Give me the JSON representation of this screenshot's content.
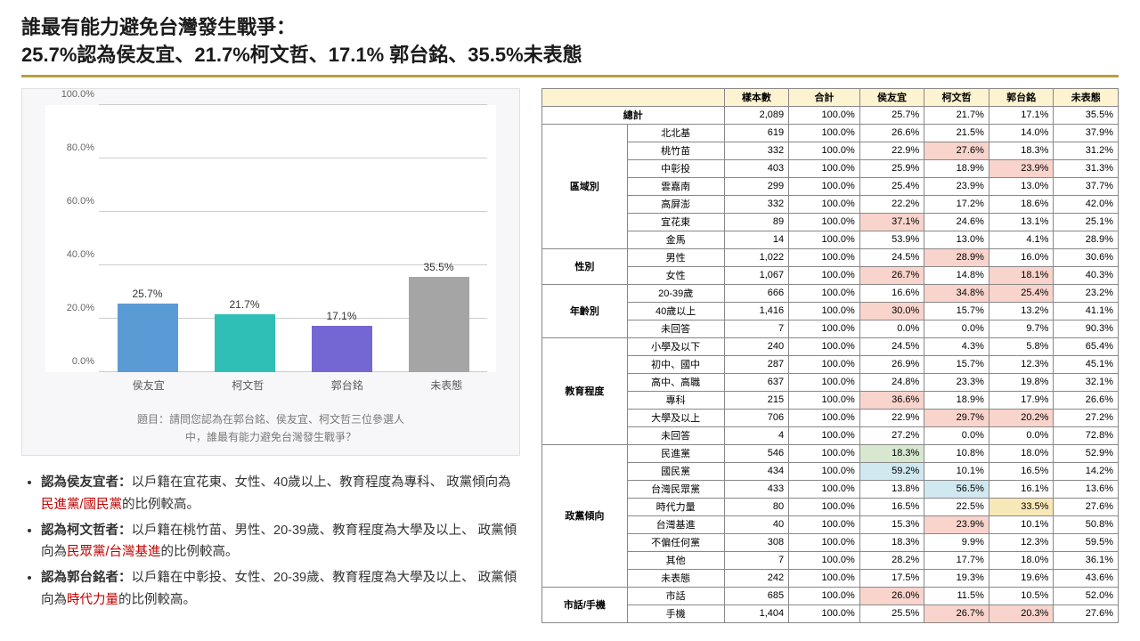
{
  "title_line1": "誰最有能力避免台灣發生戰爭：",
  "title_line2": "25.7%認為侯友宜、21.7%柯文哲、17.1% 郭台銘、35.5%未表態",
  "chart": {
    "type": "bar",
    "categories": [
      "侯友宜",
      "柯文哲",
      "郭台銘",
      "未表態"
    ],
    "values": [
      25.7,
      21.7,
      17.1,
      35.5
    ],
    "value_labels": [
      "25.7%",
      "21.7%",
      "17.1%",
      "35.5%"
    ],
    "bar_colors": [
      "#5b9bd5",
      "#2fbfb7",
      "#7467d3",
      "#a5a5a5"
    ],
    "ylim": [
      0,
      100
    ],
    "ytick_step": 20,
    "y_labels": [
      "0.0%",
      "20.0%",
      "40.0%",
      "60.0%",
      "80.0%",
      "100.0%"
    ],
    "grid_color": "#cccccc",
    "background": "#f7f7f9",
    "question_line1": "題目：請問您認為在郭台銘、侯友宜、柯文哲三位參選人",
    "question_line2": "中，誰最有能力避免台灣發生戰爭？"
  },
  "notes": {
    "n1_label": "認為侯友宜者：",
    "n1_text_a": "以戶籍在宜花東、女性、40歲以上、教育程度為專科、 政黨傾向為",
    "n1_hl": "民進黨/國民黨",
    "n1_text_b": "的比例較高。",
    "n2_label": "認為柯文哲者：",
    "n2_text_a": "以戶籍在桃竹苗、男性、20-39歲、教育程度為大學及以上、 政黨傾向為",
    "n2_hl": "民眾黨/台灣基進",
    "n2_text_b": "的比例較高。",
    "n3_label": "認為郭台銘者：",
    "n3_text_a": "以戶籍在中彰投、女性、20-39歲、教育程度為大學及以上、 政黨傾向為",
    "n3_hl": "時代力量",
    "n3_text_b": "的比例較高。"
  },
  "table": {
    "headers": [
      "樣本數",
      "合計",
      "侯友宜",
      "柯文哲",
      "郭台銘",
      "未表態"
    ],
    "total_label": "總計",
    "total": [
      "2,089",
      "100.0%",
      "25.7%",
      "21.7%",
      "17.1%",
      "35.5%"
    ],
    "groups": [
      {
        "name": "區域別",
        "rows": [
          {
            "label": "北北基",
            "cells": [
              "619",
              "100.0%",
              "26.6%",
              "21.5%",
              "14.0%",
              "37.9%"
            ],
            "hl": {}
          },
          {
            "label": "桃竹苗",
            "cells": [
              "332",
              "100.0%",
              "22.9%",
              "27.6%",
              "18.3%",
              "31.2%"
            ],
            "hl": {
              "3": "hl-pink"
            }
          },
          {
            "label": "中彰投",
            "cells": [
              "403",
              "100.0%",
              "25.9%",
              "18.9%",
              "23.9%",
              "31.3%"
            ],
            "hl": {
              "4": "hl-pink"
            }
          },
          {
            "label": "雲嘉南",
            "cells": [
              "299",
              "100.0%",
              "25.4%",
              "23.9%",
              "13.0%",
              "37.7%"
            ],
            "hl": {}
          },
          {
            "label": "高屏澎",
            "cells": [
              "332",
              "100.0%",
              "22.2%",
              "17.2%",
              "18.6%",
              "42.0%"
            ],
            "hl": {}
          },
          {
            "label": "宜花東",
            "cells": [
              "89",
              "100.0%",
              "37.1%",
              "24.6%",
              "13.1%",
              "25.1%"
            ],
            "hl": {
              "2": "hl-pink"
            }
          },
          {
            "label": "金馬",
            "cells": [
              "14",
              "100.0%",
              "53.9%",
              "13.0%",
              "4.1%",
              "28.9%"
            ],
            "hl": {}
          }
        ]
      },
      {
        "name": "性別",
        "rows": [
          {
            "label": "男性",
            "cells": [
              "1,022",
              "100.0%",
              "24.5%",
              "28.9%",
              "16.0%",
              "30.6%"
            ],
            "hl": {
              "3": "hl-pink"
            }
          },
          {
            "label": "女性",
            "cells": [
              "1,067",
              "100.0%",
              "26.7%",
              "14.8%",
              "18.1%",
              "40.3%"
            ],
            "hl": {
              "2": "hl-pink",
              "4": "hl-pink"
            }
          }
        ]
      },
      {
        "name": "年齡別",
        "rows": [
          {
            "label": "20-39歲",
            "cells": [
              "666",
              "100.0%",
              "16.6%",
              "34.8%",
              "25.4%",
              "23.2%"
            ],
            "hl": {
              "3": "hl-pink",
              "4": "hl-pink"
            }
          },
          {
            "label": "40歲以上",
            "cells": [
              "1,416",
              "100.0%",
              "30.0%",
              "15.7%",
              "13.2%",
              "41.1%"
            ],
            "hl": {
              "2": "hl-pink"
            }
          },
          {
            "label": "未回答",
            "cells": [
              "7",
              "100.0%",
              "0.0%",
              "0.0%",
              "9.7%",
              "90.3%"
            ],
            "hl": {}
          }
        ]
      },
      {
        "name": "教育程度",
        "rows": [
          {
            "label": "小學及以下",
            "cells": [
              "240",
              "100.0%",
              "24.5%",
              "4.3%",
              "5.8%",
              "65.4%"
            ],
            "hl": {}
          },
          {
            "label": "初中、國中",
            "cells": [
              "287",
              "100.0%",
              "26.9%",
              "15.7%",
              "12.3%",
              "45.1%"
            ],
            "hl": {}
          },
          {
            "label": "高中、高職",
            "cells": [
              "637",
              "100.0%",
              "24.8%",
              "23.3%",
              "19.8%",
              "32.1%"
            ],
            "hl": {}
          },
          {
            "label": "專科",
            "cells": [
              "215",
              "100.0%",
              "36.6%",
              "18.9%",
              "17.9%",
              "26.6%"
            ],
            "hl": {
              "2": "hl-pink"
            }
          },
          {
            "label": "大學及以上",
            "cells": [
              "706",
              "100.0%",
              "22.9%",
              "29.7%",
              "20.2%",
              "27.2%"
            ],
            "hl": {
              "3": "hl-pink",
              "4": "hl-pink"
            }
          },
          {
            "label": "未回答",
            "cells": [
              "4",
              "100.0%",
              "27.2%",
              "0.0%",
              "0.0%",
              "72.8%"
            ],
            "hl": {}
          }
        ]
      },
      {
        "name": "政黨傾向",
        "rows": [
          {
            "label": "民進黨",
            "cells": [
              "546",
              "100.0%",
              "18.3%",
              "10.8%",
              "18.0%",
              "52.9%"
            ],
            "hl": {
              "2": "hl-green"
            }
          },
          {
            "label": "國民黨",
            "cells": [
              "434",
              "100.0%",
              "59.2%",
              "10.1%",
              "16.5%",
              "14.2%"
            ],
            "hl": {
              "2": "hl-blue"
            }
          },
          {
            "label": "台灣民眾黨",
            "cells": [
              "433",
              "100.0%",
              "13.8%",
              "56.5%",
              "16.1%",
              "13.6%"
            ],
            "hl": {
              "3": "hl-blue"
            }
          },
          {
            "label": "時代力量",
            "cells": [
              "80",
              "100.0%",
              "16.5%",
              "22.5%",
              "33.5%",
              "27.6%"
            ],
            "hl": {
              "4": "hl-yellow"
            }
          },
          {
            "label": "台灣基進",
            "cells": [
              "40",
              "100.0%",
              "15.3%",
              "23.9%",
              "10.1%",
              "50.8%"
            ],
            "hl": {
              "3": "hl-pink"
            }
          },
          {
            "label": "不偏任何黨",
            "cells": [
              "308",
              "100.0%",
              "18.3%",
              "9.9%",
              "12.3%",
              "59.5%"
            ],
            "hl": {}
          },
          {
            "label": "其他",
            "cells": [
              "7",
              "100.0%",
              "28.2%",
              "17.7%",
              "18.0%",
              "36.1%"
            ],
            "hl": {}
          },
          {
            "label": "未表態",
            "cells": [
              "242",
              "100.0%",
              "17.5%",
              "19.3%",
              "19.6%",
              "43.6%"
            ],
            "hl": {}
          }
        ]
      },
      {
        "name": "市話/手機",
        "rows": [
          {
            "label": "市話",
            "cells": [
              "685",
              "100.0%",
              "26.0%",
              "11.5%",
              "10.5%",
              "52.0%"
            ],
            "hl": {
              "2": "hl-pink"
            }
          },
          {
            "label": "手機",
            "cells": [
              "1,404",
              "100.0%",
              "25.5%",
              "26.7%",
              "20.3%",
              "27.6%"
            ],
            "hl": {
              "3": "hl-pink",
              "4": "hl-pink"
            }
          }
        ]
      }
    ]
  }
}
